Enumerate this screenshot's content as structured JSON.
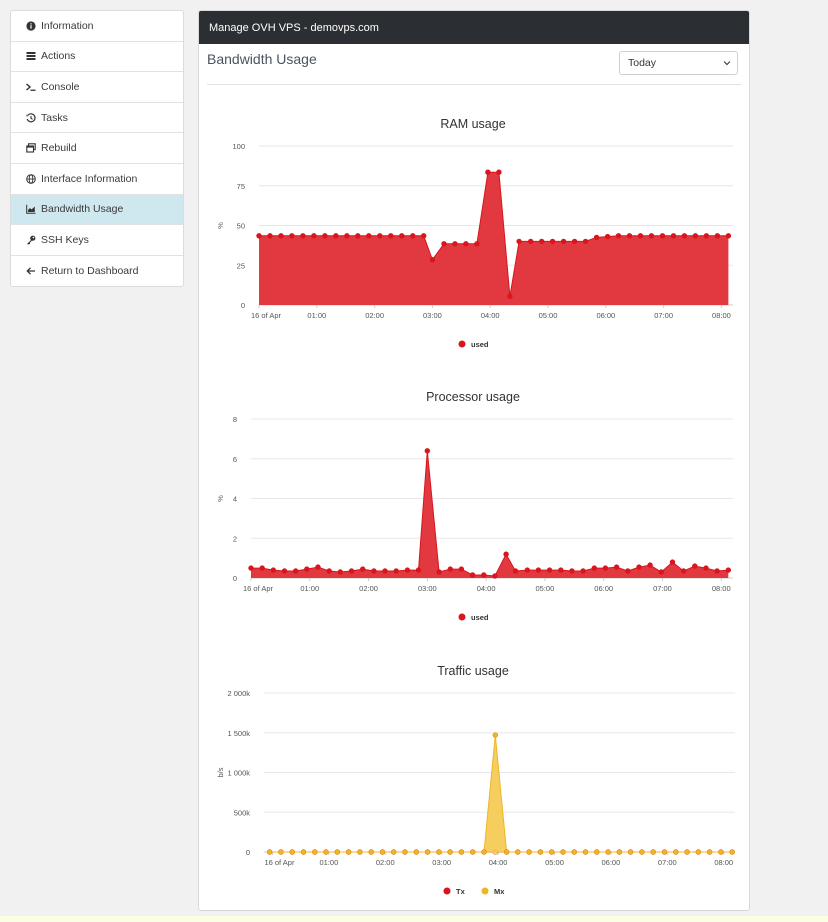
{
  "sidebar": {
    "items": [
      {
        "label": "Information",
        "icon": "info-circle-icon"
      },
      {
        "label": "Actions",
        "icon": "list-icon"
      },
      {
        "label": "Console",
        "icon": "terminal-icon"
      },
      {
        "label": "Tasks",
        "icon": "history-icon"
      },
      {
        "label": "Rebuild",
        "icon": "window-restore-icon"
      },
      {
        "label": "Interface Information",
        "icon": "globe-icon"
      },
      {
        "label": "Bandwidth Usage",
        "icon": "area-chart-icon",
        "active": true
      },
      {
        "label": "SSH Keys",
        "icon": "key-icon"
      },
      {
        "label": "Return to Dashboard",
        "icon": "arrow-left-icon"
      }
    ]
  },
  "panel": {
    "header": "Manage OVH VPS - demovps.com",
    "title": "Bandwidth Usage",
    "range_select": {
      "value": "Today"
    }
  },
  "colors": {
    "red": "#d9151d",
    "red_fill": "#e1393f",
    "orange_fill": "#f5c542",
    "orange_dot": "#f0b429",
    "active_item": "#cfe8ef",
    "header": "#2b2f33"
  },
  "chart_data": [
    {
      "type": "area",
      "title": "RAM usage",
      "ylabel": "%",
      "ylim": [
        0,
        100
      ],
      "yticks": [
        "0",
        "25",
        "50",
        "75",
        "100"
      ],
      "xticks": [
        "16 of Apr",
        "01:00",
        "02:00",
        "03:00",
        "04:00",
        "05:00",
        "06:00",
        "07:00",
        "08:00"
      ],
      "x_range": [
        0,
        8.2
      ],
      "x": [
        0,
        0.19,
        0.38,
        0.57,
        0.76,
        0.95,
        1.14,
        1.33,
        1.52,
        1.71,
        1.9,
        2.09,
        2.28,
        2.47,
        2.66,
        2.85,
        3.0,
        3.2,
        3.39,
        3.58,
        3.77,
        3.96,
        4.15,
        4.34,
        4.5,
        4.7,
        4.89,
        5.08,
        5.27,
        5.46,
        5.65,
        5.84,
        6.03,
        6.22,
        6.41,
        6.6,
        6.79,
        6.98,
        7.17,
        7.36,
        7.55,
        7.74,
        7.93,
        8.12
      ],
      "series": [
        {
          "name": "used",
          "values": [
            43.5,
            43.5,
            43.5,
            43.5,
            43.5,
            43.5,
            43.5,
            43.5,
            43.5,
            43.5,
            43.5,
            43.5,
            43.5,
            43.5,
            43.5,
            43.5,
            28.5,
            38.5,
            38.5,
            38.5,
            38.5,
            83.5,
            83.5,
            5.5,
            40,
            40,
            40,
            40,
            40,
            40,
            40,
            42.5,
            43,
            43.5,
            43.5,
            43.5,
            43.5,
            43.5,
            43.5,
            43.5,
            43.5,
            43.5,
            43.5,
            43.5
          ]
        }
      ],
      "legend": [
        "used"
      ],
      "grid": true
    },
    {
      "type": "area",
      "title": "Processor usage",
      "ylabel": "%",
      "ylim": [
        0,
        8
      ],
      "yticks": [
        "0",
        "2",
        "4",
        "6",
        "8"
      ],
      "xticks": [
        "16 of Apr",
        "01:00",
        "02:00",
        "03:00",
        "04:00",
        "05:00",
        "06:00",
        "07:00",
        "08:00"
      ],
      "x_range": [
        0,
        8.2
      ],
      "x": [
        0,
        0.19,
        0.38,
        0.57,
        0.76,
        0.95,
        1.14,
        1.33,
        1.52,
        1.71,
        1.9,
        2.09,
        2.28,
        2.47,
        2.66,
        2.85,
        3.0,
        3.2,
        3.39,
        3.58,
        3.77,
        3.96,
        4.15,
        4.34,
        4.5,
        4.7,
        4.89,
        5.08,
        5.27,
        5.46,
        5.65,
        5.84,
        6.03,
        6.22,
        6.41,
        6.6,
        6.79,
        6.98,
        7.17,
        7.36,
        7.55,
        7.74,
        7.93,
        8.12
      ],
      "series": [
        {
          "name": "used",
          "values": [
            0.5,
            0.5,
            0.4,
            0.35,
            0.35,
            0.45,
            0.55,
            0.35,
            0.3,
            0.35,
            0.45,
            0.35,
            0.35,
            0.35,
            0.4,
            0.4,
            6.4,
            0.3,
            0.45,
            0.45,
            0.15,
            0.15,
            0.1,
            1.2,
            0.35,
            0.4,
            0.4,
            0.4,
            0.4,
            0.35,
            0.35,
            0.5,
            0.5,
            0.55,
            0.35,
            0.55,
            0.65,
            0.3,
            0.8,
            0.35,
            0.6,
            0.5,
            0.35,
            0.4
          ]
        }
      ],
      "legend": [
        "used"
      ],
      "grid": true
    },
    {
      "type": "area",
      "title": "Traffic usage",
      "ylabel": "b/s",
      "ylim": [
        0,
        2000000
      ],
      "yticks": [
        "0",
        "500k",
        "1 000k",
        "1 500k",
        "2 000k"
      ],
      "xticks": [
        "16 of Apr",
        "01:00",
        "02:00",
        "03:00",
        "04:00",
        "05:00",
        "06:00",
        "07:00",
        "08:00"
      ],
      "x_range": [
        -0.15,
        8.2
      ],
      "x": [
        -0.05,
        0.15,
        0.35,
        0.55,
        0.75,
        0.95,
        1.15,
        1.35,
        1.55,
        1.75,
        1.95,
        2.15,
        2.35,
        2.55,
        2.75,
        2.95,
        3.15,
        3.35,
        3.55,
        3.75,
        3.95,
        4.15,
        4.35,
        4.55,
        4.75,
        4.95,
        5.15,
        5.35,
        5.55,
        5.75,
        5.95,
        6.15,
        6.35,
        6.55,
        6.75,
        6.95,
        7.15,
        7.35,
        7.55,
        7.75,
        7.95,
        8.15
      ],
      "series": [
        {
          "name": "Tx",
          "values": [
            0,
            0,
            0,
            0,
            0,
            0,
            0,
            0,
            0,
            0,
            0,
            0,
            0,
            0,
            0,
            0,
            0,
            0,
            0,
            0,
            0,
            0,
            0,
            0,
            0,
            0,
            0,
            0,
            0,
            0,
            0,
            0,
            0,
            0,
            0,
            0,
            0,
            0,
            0,
            0,
            0,
            0
          ]
        },
        {
          "name": "Mx",
          "values": [
            0,
            0,
            0,
            0,
            0,
            0,
            0,
            0,
            0,
            0,
            0,
            0,
            0,
            0,
            0,
            0,
            0,
            0,
            0,
            0,
            1470000,
            0,
            0,
            0,
            0,
            0,
            0,
            0,
            0,
            0,
            0,
            0,
            0,
            0,
            0,
            0,
            0,
            0,
            0,
            0,
            0,
            0
          ]
        }
      ],
      "legend": [
        "Tx",
        "Mx"
      ],
      "grid": true
    }
  ]
}
